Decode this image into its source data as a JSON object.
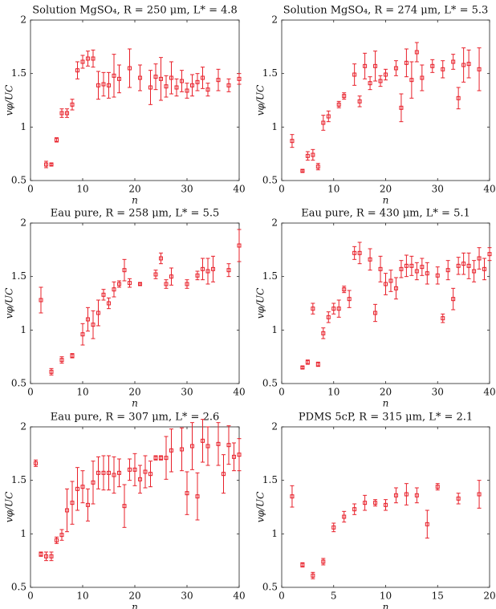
{
  "chart_data": [
    {
      "type": "scatter",
      "title": "Solution MgSO₄, R = 250 μm, L* = 4.8",
      "x_label": "n",
      "y_label": "vφ/UC",
      "color": "#e8202a",
      "x": [
        3,
        4,
        5,
        6,
        7,
        8,
        9,
        10,
        11,
        12,
        13,
        14,
        15,
        16,
        17,
        19,
        21,
        23,
        24,
        25,
        26,
        27,
        28,
        29,
        30,
        31,
        32,
        33,
        34,
        36,
        38,
        40
      ],
      "values": [
        0.65,
        0.65,
        0.88,
        1.13,
        1.13,
        1.21,
        1.53,
        1.61,
        1.64,
        1.64,
        1.39,
        1.4,
        1.39,
        1.48,
        1.45,
        1.55,
        1.46,
        1.37,
        1.47,
        1.45,
        1.38,
        1.46,
        1.37,
        1.43,
        1.34,
        1.39,
        1.42,
        1.46,
        1.35,
        1.44,
        1.39,
        1.45
      ],
      "errors": [
        0.03,
        0.01,
        0.02,
        0.04,
        0.04,
        0.05,
        0.08,
        0.06,
        0.07,
        0.08,
        0.13,
        0.11,
        0.12,
        0.2,
        0.13,
        0.18,
        0.12,
        0.16,
        0.12,
        0.2,
        0.1,
        0.15,
        0.08,
        0.1,
        0.07,
        0.1,
        0.08,
        0.1,
        0.06,
        0.1,
        0.06,
        0.05
      ],
      "xlim": [
        0,
        40
      ],
      "ylim": [
        0.5,
        2
      ],
      "xticks": [
        0,
        10,
        20,
        30,
        40
      ],
      "yticks": [
        0.5,
        1,
        1.5,
        2
      ]
    },
    {
      "type": "scatter",
      "title": "Solution MgSO₄, R = 274 μm, L* = 5.3",
      "x_label": "n",
      "y_label": "vφ/UC",
      "color": "#e8202a",
      "x": [
        2,
        4,
        5,
        6,
        7,
        8,
        9,
        11,
        12,
        14,
        15,
        16,
        17,
        18,
        19,
        20,
        22,
        23,
        24,
        25,
        26,
        27,
        29,
        31,
        33,
        34,
        35,
        36,
        38
      ],
      "values": [
        0.87,
        0.59,
        0.73,
        0.74,
        0.63,
        1.04,
        1.1,
        1.21,
        1.29,
        1.49,
        1.24,
        1.57,
        1.41,
        1.57,
        1.43,
        1.49,
        1.55,
        1.18,
        1.6,
        1.44,
        1.7,
        1.46,
        1.57,
        1.54,
        1.61,
        1.27,
        1.58,
        1.59,
        1.54
      ],
      "errors": [
        0.06,
        0.01,
        0.04,
        0.05,
        0.03,
        0.07,
        0.05,
        0.03,
        0.03,
        0.1,
        0.05,
        0.12,
        0.06,
        0.14,
        0.05,
        0.05,
        0.07,
        0.13,
        0.13,
        0.17,
        0.09,
        0.12,
        0.06,
        0.08,
        0.07,
        0.1,
        0.16,
        0.13,
        0.2
      ],
      "xlim": [
        0,
        40
      ],
      "ylim": [
        0.5,
        2
      ],
      "xticks": [
        0,
        10,
        20,
        30,
        40
      ],
      "yticks": [
        0.5,
        1,
        1.5,
        2
      ]
    },
    {
      "type": "scatter",
      "title": "Eau pure, R = 258 μm, L* = 5.5",
      "x_label": "n",
      "y_label": "vφ/UC",
      "color": "#e8202a",
      "x": [
        2,
        4,
        6,
        8,
        10,
        11,
        12,
        13,
        14,
        15,
        16,
        17,
        18,
        19,
        21,
        24,
        25,
        26,
        27,
        30,
        32,
        33,
        34,
        35,
        38,
        40
      ],
      "values": [
        1.28,
        0.61,
        0.72,
        0.76,
        0.96,
        1.1,
        1.05,
        1.16,
        1.33,
        1.25,
        1.38,
        1.43,
        1.56,
        1.44,
        1.43,
        1.52,
        1.67,
        1.43,
        1.5,
        1.43,
        1.51,
        1.57,
        1.55,
        1.57,
        1.56,
        1.79
      ],
      "errors": [
        0.12,
        0.03,
        0.03,
        0.02,
        0.1,
        0.11,
        0.13,
        0.12,
        0.05,
        0.05,
        0.07,
        0.03,
        0.1,
        0.04,
        0.01,
        0.04,
        0.05,
        0.04,
        0.08,
        0.04,
        0.04,
        0.1,
        0.12,
        0.12,
        0.06,
        0.15
      ],
      "xlim": [
        0,
        40
      ],
      "ylim": [
        0.5,
        2
      ],
      "xticks": [
        0,
        10,
        20,
        30,
        40
      ],
      "yticks": [
        0.5,
        1,
        1.5,
        2
      ]
    },
    {
      "type": "scatter",
      "title": "Eau pure, R = 430 μm, L* = 5.1",
      "x_label": "n",
      "y_label": "vφ/UC",
      "color": "#e8202a",
      "x": [
        4,
        5,
        6,
        7,
        8,
        9,
        10,
        11,
        12,
        13,
        14,
        15,
        17,
        18,
        19,
        20,
        21,
        22,
        23,
        24,
        25,
        26,
        27,
        28,
        30,
        31,
        32,
        33,
        34,
        35,
        36,
        37,
        38,
        39,
        40
      ],
      "values": [
        0.65,
        0.7,
        1.2,
        0.68,
        0.97,
        1.12,
        1.2,
        1.2,
        1.38,
        1.29,
        1.72,
        1.72,
        1.66,
        1.16,
        1.57,
        1.43,
        1.46,
        1.39,
        1.57,
        1.6,
        1.6,
        1.55,
        1.59,
        1.53,
        1.51,
        1.11,
        1.56,
        1.29,
        1.6,
        1.62,
        1.6,
        1.55,
        1.67,
        1.57,
        1.71
      ],
      "errors": [
        0.01,
        0.02,
        0.05,
        0.02,
        0.05,
        0.05,
        0.05,
        0.08,
        0.03,
        0.08,
        0.06,
        0.1,
        0.1,
        0.08,
        0.12,
        0.1,
        0.1,
        0.1,
        0.08,
        0.1,
        0.09,
        0.08,
        0.08,
        0.1,
        0.08,
        0.04,
        0.09,
        0.1,
        0.08,
        0.1,
        0.12,
        0.1,
        0.1,
        0.1,
        0.06
      ],
      "xlim": [
        0,
        40
      ],
      "ylim": [
        0.5,
        2
      ],
      "xticks": [
        0,
        10,
        20,
        30,
        40
      ],
      "yticks": [
        0.5,
        1,
        1.5,
        2
      ]
    },
    {
      "type": "scatter",
      "title": "Eau pure, R = 307 μm, L* = 2.6",
      "x_label": "n",
      "y_label": "vφ/UC",
      "color": "#e8202a",
      "x": [
        1,
        2,
        3,
        4,
        5,
        6,
        7,
        8,
        9,
        10,
        11,
        12,
        13,
        14,
        15,
        16,
        17,
        18,
        19,
        20,
        21,
        22,
        23,
        24,
        25,
        26,
        27,
        29,
        30,
        31,
        32,
        33,
        34,
        36,
        37,
        38,
        39,
        40
      ],
      "values": [
        1.66,
        0.81,
        0.79,
        0.79,
        0.94,
        0.99,
        1.22,
        1.29,
        1.42,
        1.44,
        1.27,
        1.48,
        1.57,
        1.57,
        1.57,
        1.55,
        1.57,
        1.26,
        1.6,
        1.6,
        1.51,
        1.58,
        1.56,
        1.71,
        1.71,
        1.71,
        1.78,
        1.79,
        1.38,
        1.82,
        1.35,
        1.87,
        1.82,
        1.84,
        1.56,
        1.83,
        1.72,
        1.74
      ],
      "errors": [
        0.03,
        0.02,
        0.04,
        0.04,
        0.03,
        0.05,
        0.2,
        0.2,
        0.2,
        0.15,
        0.15,
        0.2,
        0.15,
        0.16,
        0.16,
        0.17,
        0.13,
        0.2,
        0.1,
        0.15,
        0.13,
        0.15,
        0.12,
        0.02,
        0.02,
        0.2,
        0.2,
        0.2,
        0.2,
        0.22,
        0.22,
        0.2,
        0.18,
        0.2,
        0.18,
        0.18,
        0.13,
        0.15
      ],
      "xlim": [
        0,
        40
      ],
      "ylim": [
        0.5,
        2
      ],
      "xticks": [
        0,
        10,
        20,
        30,
        40
      ],
      "yticks": [
        0.5,
        1,
        1.5,
        2
      ]
    },
    {
      "type": "scatter",
      "title": "PDMS 5cP, R = 315 μm, L* = 2.1",
      "x_label": "n",
      "y_label": "vφ/UC",
      "color": "#e8202a",
      "x": [
        1,
        2,
        3,
        4,
        5,
        6,
        7,
        8,
        9,
        10,
        11,
        12,
        13,
        14,
        15,
        17,
        19
      ],
      "values": [
        1.35,
        0.71,
        0.61,
        0.74,
        1.06,
        1.16,
        1.23,
        1.29,
        1.29,
        1.27,
        1.36,
        1.37,
        1.36,
        1.09,
        1.44,
        1.33,
        1.37
      ],
      "errors": [
        0.1,
        0.02,
        0.03,
        0.03,
        0.04,
        0.05,
        0.05,
        0.07,
        0.03,
        0.05,
        0.07,
        0.1,
        0.07,
        0.13,
        0.03,
        0.05,
        0.13
      ],
      "xlim": [
        0,
        20
      ],
      "ylim": [
        0.5,
        2
      ],
      "xticks": [
        0,
        5,
        10,
        15,
        20
      ],
      "yticks": [
        0.5,
        1,
        1.5,
        2
      ]
    }
  ]
}
